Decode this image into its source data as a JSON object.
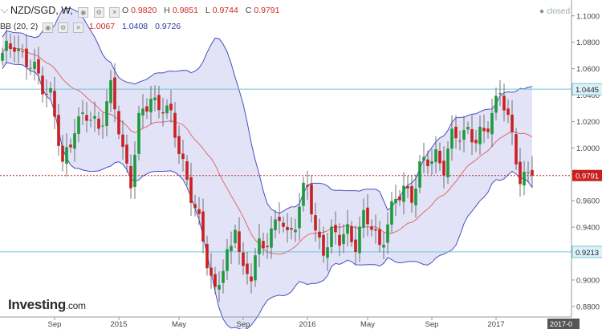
{
  "header": {
    "symbol": "NZD/SGD, W,",
    "ohlc": {
      "o_label": "O",
      "o": "0.9820",
      "h_label": "H",
      "h": "0.9851",
      "l_label": "L",
      "l": "0.9744",
      "c_label": "C",
      "c": "0.9791"
    },
    "indicator_label": "BB (20, 2)",
    "indicator_values": [
      "1.0067",
      "1.0408",
      "0.9726"
    ],
    "status": "closed"
  },
  "logo": {
    "name": "Investing",
    "suffix": ".com"
  },
  "colors": {
    "up": "#1d9a3e",
    "down": "#c92121",
    "band": "#4a4fbf",
    "band_fill": "#d8d9f4",
    "sma": "#e06a6a",
    "hline": "#6fc6d8",
    "price_line": "#c92121",
    "badge_blue": "#dff0f6"
  },
  "chart_data": {
    "type": "candlestick",
    "x_tick_labels": [
      "Sep",
      "2015",
      "May",
      "Sep",
      "2016",
      "May",
      "Sep",
      "2017",
      "2017-0"
    ],
    "y_tick_labels": [
      "1.1000",
      "1.0800",
      "1.0600",
      "1.0400",
      "1.0200",
      "1.0000",
      "0.9800",
      "0.9600",
      "0.9400",
      "0.9200",
      "0.9000",
      "0.8800"
    ],
    "ylim": [
      0.872,
      1.112
    ],
    "hlines": [
      {
        "value": 1.0445,
        "label": "1.0445"
      },
      {
        "value": 0.9213,
        "label": "0.9213"
      }
    ],
    "last_price": {
      "value": 0.9791,
      "label": "0.9791"
    },
    "close_anchors": [
      [
        0,
        1.068
      ],
      [
        3,
        1.082
      ],
      [
        6,
        1.063
      ],
      [
        9,
        1.055
      ],
      [
        12,
        1.04
      ],
      [
        15,
        0.985
      ],
      [
        18,
        1.019
      ],
      [
        21,
        1.022
      ],
      [
        24,
        1.018
      ],
      [
        27,
        1.043
      ],
      [
        30,
        0.998
      ],
      [
        32,
        0.978
      ],
      [
        34,
        1.018
      ],
      [
        37,
        1.038
      ],
      [
        40,
        1.032
      ],
      [
        42,
        1.02
      ],
      [
        45,
        0.99
      ],
      [
        48,
        0.952
      ],
      [
        51,
        0.916
      ],
      [
        53,
        0.893
      ],
      [
        55,
        0.908
      ],
      [
        57,
        0.921
      ],
      [
        58,
        0.945
      ],
      [
        60,
        0.908
      ],
      [
        62,
        0.902
      ],
      [
        64,
        0.924
      ],
      [
        67,
        0.938
      ],
      [
        69,
        0.947
      ],
      [
        71,
        0.93
      ],
      [
        73,
        0.948
      ],
      [
        75,
        0.968
      ],
      [
        76,
        0.97
      ],
      [
        78,
        0.932
      ],
      [
        80,
        0.927
      ],
      [
        82,
        0.935
      ],
      [
        84,
        0.928
      ],
      [
        86,
        0.938
      ],
      [
        88,
        0.93
      ],
      [
        90,
        0.945
      ],
      [
        92,
        0.94
      ],
      [
        94,
        0.928
      ],
      [
        96,
        0.943
      ],
      [
        98,
        0.958
      ],
      [
        100,
        0.971
      ],
      [
        102,
        0.965
      ],
      [
        104,
        0.982
      ],
      [
        106,
        0.99
      ],
      [
        108,
        0.997
      ],
      [
        110,
        0.985
      ],
      [
        112,
        1.005
      ],
      [
        114,
        1.012
      ],
      [
        116,
        1.015
      ],
      [
        118,
        1.003
      ],
      [
        120,
        1.01
      ],
      [
        122,
        1.03
      ],
      [
        124,
        1.043
      ],
      [
        126,
        1.018
      ],
      [
        128,
        0.994
      ],
      [
        129,
        0.98
      ],
      [
        131,
        0.979
      ]
    ]
  }
}
